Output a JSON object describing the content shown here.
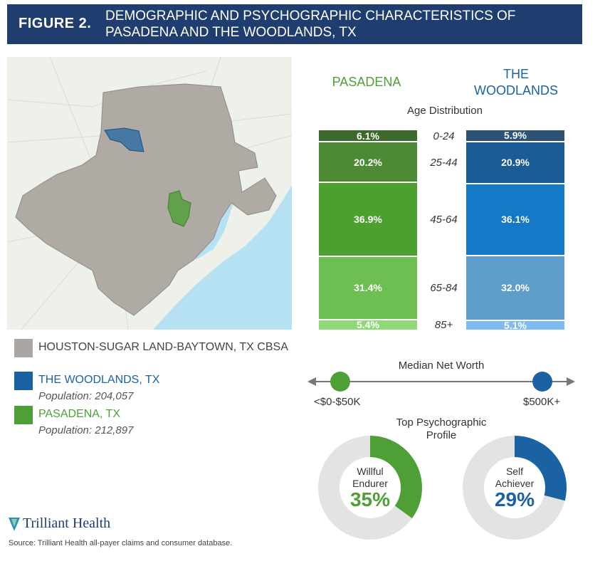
{
  "header": {
    "figure_label": "FIGURE 2.",
    "title": "DEMOGRAPHIC AND PSYCHOGRAPHIC CHARACTERISTICS OF PASADENA AND THE WOODLANDS, TX"
  },
  "legend": {
    "cbsa": {
      "label": "HOUSTON-SUGAR LAND-BAYTOWN, TX CBSA",
      "color": "#aaa6a3"
    },
    "woodlands": {
      "label": "THE WOODLANDS, TX",
      "population": "Population: 204,057",
      "color": "#1b62a3"
    },
    "pasadena": {
      "label": "PASADENA, TX",
      "population": "Population: 212,897",
      "color": "#4e9f36"
    }
  },
  "colors": {
    "header_bg": "#1f3d6e",
    "pasadena_text": "#4e9f36",
    "woodlands_text": "#1b62a3",
    "map_land": "#eef0ea",
    "map_water": "#b6e1f3",
    "cbsa_fill": "#b0aaa5"
  },
  "chart_data": [
    {
      "type": "bar",
      "title": "Age Distribution",
      "categories": [
        "0-24",
        "25-44",
        "45-64",
        "65-84",
        "85+"
      ],
      "series": [
        {
          "name": "PASADENA",
          "values": [
            6.1,
            20.2,
            36.9,
            31.4,
            5.4
          ],
          "labels": [
            "6.1%",
            "20.2%",
            "36.9%",
            "31.4%",
            "5.4%"
          ],
          "colors": [
            "#3c6a2d",
            "#4e8a35",
            "#4ba02f",
            "#6dbf52",
            "#8fd878"
          ]
        },
        {
          "name": "THE WOODLANDS",
          "values": [
            5.9,
            20.9,
            36.1,
            32.0,
            5.1
          ],
          "labels": [
            "5.9%",
            "20.9%",
            "36.1%",
            "32.0%",
            "5.1%"
          ],
          "colors": [
            "#2d5275",
            "#1b5c97",
            "#1479c7",
            "#5f9dcb",
            "#7fbbf0"
          ]
        }
      ]
    },
    {
      "type": "scatter",
      "title": "Median Net Worth",
      "x_labels": [
        "<$0-$50K",
        "$500K+"
      ],
      "points": [
        {
          "series": "PASADENA",
          "position": 0
        },
        {
          "series": "THE WOODLANDS",
          "position": 1
        }
      ]
    },
    {
      "type": "pie",
      "title": "Top Psychographic Profile",
      "donuts": [
        {
          "series": "PASADENA",
          "label_line1": "Willful",
          "label_line2": "Endurer",
          "value": 35,
          "value_label": "35%",
          "color": "#4e9f36"
        },
        {
          "series": "THE WOODLANDS",
          "label_line1": "Self",
          "label_line2": "Achiever",
          "value": 29,
          "value_label": "29%",
          "color": "#1b62a3"
        }
      ]
    }
  ],
  "footer": {
    "logo_text": "Trilliant Health",
    "source": "Source: Trilliant Health all-payer claims and consumer database."
  }
}
